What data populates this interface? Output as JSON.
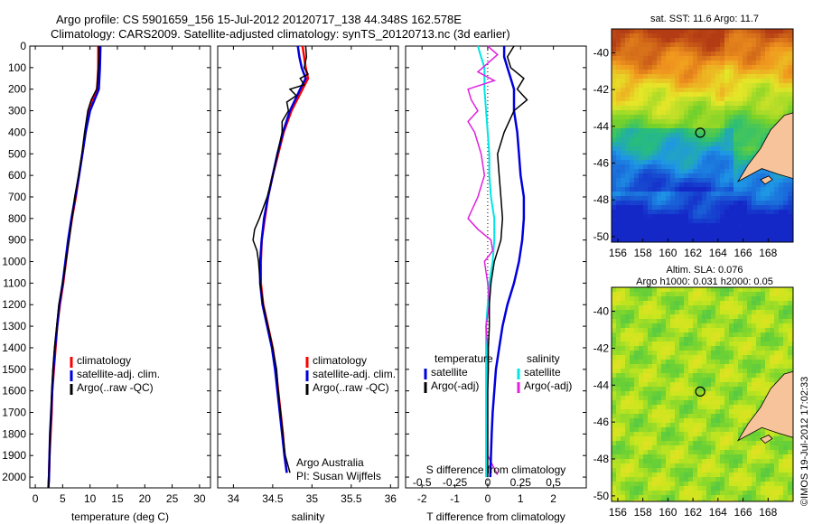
{
  "header": {
    "title_line1": "Argo profile: CS 5901659_156 15-Jul-2012 20120717_138 44.348S 162.578E",
    "title_line2": "Climatology: CARS2009. Satellite-adjusted climatology: synTS_20120713.nc (3d earlier)"
  },
  "colors": {
    "climatology": "#ff0000",
    "satellite": "#0000dd",
    "argo": "#000000",
    "salinity_satellite": "#00e5e5",
    "salinity_argo": "#e020e0",
    "land": "#f7c39a"
  },
  "depth_axis": {
    "min": 0,
    "max": 2050,
    "ticks": [
      0,
      100,
      200,
      300,
      400,
      500,
      600,
      700,
      800,
      900,
      1000,
      1100,
      1200,
      1300,
      1400,
      1500,
      1600,
      1700,
      1800,
      1900,
      2000
    ]
  },
  "panels": {
    "temperature": {
      "xlabel": "temperature (deg C)",
      "xlim": [
        -1,
        32
      ],
      "xticks": [
        0,
        5,
        10,
        15,
        20,
        25,
        30
      ],
      "legend": [
        "climatology",
        "satellite-adj. clim.",
        "Argo(..raw -QC)"
      ]
    },
    "salinity": {
      "xlabel": "salinity",
      "xlim": [
        33.8,
        36.1
      ],
      "xticks": [
        34,
        34.5,
        35,
        35.5,
        36
      ],
      "legend": [
        "climatology",
        "satellite-adj. clim.",
        "Argo(..raw -QC)"
      ],
      "note_line1": "Argo Australia",
      "note_line2": "PI: Susan Wijffels"
    },
    "difference": {
      "xlabel": "T difference from climatology",
      "xlim": [
        -2.5,
        3
      ],
      "xticks": [
        -2,
        -1,
        0,
        1,
        2
      ],
      "s_label": "S difference from climatology",
      "s_ticks": [
        "-0.5",
        "-0.25",
        "0",
        "0.25",
        "0.5"
      ],
      "s_tick_positions": [
        -2,
        -1,
        0,
        1,
        2
      ],
      "legend_temp_title": "temperature",
      "legend_sal_title": "salinity",
      "legend_satellite": "satellite",
      "legend_argo": "Argo(-adj)"
    }
  },
  "maps": {
    "sst": {
      "title": "sat. SST: 11.6 Argo: 11.7",
      "lon_ticks": [
        156,
        158,
        160,
        162,
        164,
        166,
        168
      ],
      "lat_ticks": [
        -40,
        -42,
        -44,
        -46,
        -48,
        -50
      ],
      "lon_range": [
        155.5,
        170
      ],
      "lat_range": [
        -50.3,
        -38.7
      ],
      "float_position": {
        "lon": 162.578,
        "lat": -44.348
      }
    },
    "sla": {
      "title_line1": "Altim. SLA: 0.076",
      "title_line2": "Argo h1000: 0.031 h2000: 0.05",
      "lon_ticks": [
        156,
        158,
        160,
        162,
        164,
        166,
        168
      ],
      "lat_ticks": [
        -40,
        -42,
        -44,
        -46,
        -48,
        -50
      ],
      "lon_range": [
        155.5,
        170
      ],
      "lat_range": [
        -50.3,
        -38.7
      ],
      "float_position": {
        "lon": 162.578,
        "lat": -44.348
      }
    }
  },
  "footer": {
    "stamp": "©IMOS 19-Jul-2012 17:02:33"
  },
  "chart_data": [
    {
      "type": "line",
      "xlabel": "temperature (deg C)",
      "ylabel": "",
      "xlim": [
        -1,
        32
      ],
      "ylim": [
        2050,
        0
      ],
      "series": [
        {
          "name": "climatology",
          "depth": [
            0,
            100,
            200,
            300,
            400,
            500,
            600,
            700,
            800,
            900,
            1000,
            1100,
            1200,
            1300,
            1400,
            1500,
            1600,
            1700,
            1800,
            1900,
            2000,
            2050
          ],
          "values": [
            11.5,
            11.5,
            11.3,
            9.8,
            9.2,
            8.6,
            8.0,
            7.4,
            6.7,
            6.1,
            5.6,
            5.1,
            4.5,
            4.0,
            3.7,
            3.4,
            3.1,
            3.0,
            2.8,
            2.6,
            2.5,
            2.4
          ]
        },
        {
          "name": "satellite-adj. clim.",
          "depth": [
            0,
            100,
            200,
            300,
            400,
            500,
            600,
            700,
            800,
            900,
            1000,
            1100,
            1200,
            1300,
            1400,
            1500,
            1600,
            1700,
            1800,
            1900,
            2000,
            2050
          ],
          "values": [
            11.9,
            11.8,
            11.6,
            10.0,
            9.2,
            8.6,
            8.0,
            7.3,
            6.6,
            6.0,
            5.5,
            5.0,
            4.4,
            4.0,
            3.6,
            3.3,
            3.1,
            2.9,
            2.7,
            2.6,
            2.5,
            2.4
          ]
        },
        {
          "name": "Argo(..raw -QC)",
          "depth": [
            0,
            50,
            100,
            150,
            200,
            250,
            300,
            400,
            500,
            600,
            700,
            800,
            900,
            1000,
            1100,
            1200,
            1300,
            1400,
            1500,
            1600,
            1700,
            1800,
            1900,
            2000,
            2050
          ],
          "values": [
            11.6,
            11.6,
            11.5,
            11.4,
            11.2,
            10.2,
            9.6,
            9.0,
            8.5,
            7.9,
            7.2,
            6.7,
            6.2,
            5.6,
            5.0,
            4.3,
            3.9,
            3.5,
            3.2,
            3.0,
            2.9,
            2.7,
            2.6,
            2.5,
            2.4
          ]
        }
      ]
    },
    {
      "type": "line",
      "xlabel": "salinity",
      "ylabel": "",
      "xlim": [
        33.8,
        36.1
      ],
      "ylim": [
        2050,
        0
      ],
      "series": [
        {
          "name": "climatology",
          "depth": [
            0,
            50,
            100,
            150,
            200,
            300,
            400,
            500,
            600,
            700,
            800,
            900,
            1000,
            1100,
            1200,
            1300,
            1400,
            1500,
            1600,
            1700,
            1800,
            1900,
            1980
          ],
          "values": [
            34.88,
            34.9,
            34.92,
            34.95,
            34.88,
            34.74,
            34.64,
            34.57,
            34.5,
            34.44,
            34.4,
            34.36,
            34.35,
            34.35,
            34.38,
            34.44,
            34.5,
            34.54,
            34.57,
            34.6,
            34.63,
            34.65,
            34.68
          ]
        },
        {
          "name": "satellite-adj. clim.",
          "depth": [
            0,
            50,
            100,
            150,
            200,
            300,
            400,
            500,
            600,
            700,
            800,
            900,
            1000,
            1100,
            1200,
            1300,
            1400,
            1500,
            1600,
            1700,
            1800,
            1900,
            1980
          ],
          "values": [
            34.82,
            34.84,
            34.87,
            34.92,
            34.85,
            34.72,
            34.63,
            34.56,
            34.5,
            34.44,
            34.39,
            34.36,
            34.34,
            34.34,
            34.37,
            34.43,
            34.49,
            34.53,
            34.56,
            34.59,
            34.62,
            34.65,
            34.68
          ]
        },
        {
          "name": "Argo(..raw -QC)",
          "depth": [
            0,
            50,
            100,
            130,
            150,
            180,
            200,
            230,
            260,
            300,
            350,
            400,
            500,
            600,
            700,
            750,
            800,
            850,
            900,
            950,
            1000,
            1100,
            1200,
            1300,
            1400,
            1500,
            1600,
            1700,
            1800,
            1900,
            1980
          ],
          "values": [
            34.92,
            34.93,
            34.9,
            34.95,
            34.85,
            34.9,
            34.72,
            34.8,
            34.68,
            34.7,
            34.62,
            34.62,
            34.56,
            34.5,
            34.43,
            34.38,
            34.33,
            34.27,
            34.25,
            34.3,
            34.32,
            34.34,
            34.38,
            34.44,
            34.5,
            34.55,
            34.57,
            34.6,
            34.63,
            34.66,
            34.72
          ]
        }
      ]
    },
    {
      "type": "line",
      "xlabel": "T difference from climatology",
      "ylabel": "",
      "xlim": [
        -2.5,
        3
      ],
      "ylim": [
        2050,
        0
      ],
      "series": [
        {
          "name": "temperature satellite",
          "depth": [
            0,
            50,
            100,
            150,
            200,
            300,
            400,
            500,
            600,
            700,
            800,
            900,
            1000,
            1100,
            1200,
            1300,
            1400,
            1500,
            1600,
            1700,
            1800,
            1900,
            2000
          ],
          "values": [
            0.5,
            0.5,
            0.6,
            0.7,
            0.8,
            0.8,
            0.9,
            0.95,
            1.0,
            1.1,
            1.1,
            1.05,
            0.95,
            0.8,
            0.6,
            0.45,
            0.35,
            0.25,
            0.2,
            0.15,
            0.12,
            0.1,
            0.08
          ]
        },
        {
          "name": "temperature Argo(-adj)",
          "depth": [
            0,
            50,
            100,
            150,
            200,
            250,
            300,
            400,
            500,
            600,
            700,
            800,
            900,
            1000,
            1100,
            1200,
            1300,
            1400,
            1500,
            1600,
            1700,
            1800,
            1900,
            2000
          ],
          "values": [
            0.8,
            0.6,
            0.7,
            1.1,
            0.9,
            1.2,
            0.8,
            0.5,
            0.3,
            0.35,
            0.4,
            0.45,
            0.4,
            0.2,
            0.1,
            0.05,
            0.05,
            0.02,
            0.02,
            0.0,
            0.0,
            0.0,
            0.0,
            0.0
          ]
        },
        {
          "name": "salinity satellite",
          "depth": [
            0,
            50,
            100,
            200,
            300,
            400,
            500,
            600,
            700,
            800,
            900,
            1000,
            1100,
            1200,
            1300,
            1400,
            1500,
            1600,
            1700,
            1800,
            1900,
            2000
          ],
          "values": [
            -0.3,
            -0.2,
            -0.1,
            -0.1,
            -0.05,
            0.0,
            0.05,
            0.05,
            0.1,
            0.2,
            0.2,
            0.15,
            0.05,
            0.0,
            -0.05,
            -0.05,
            -0.05,
            -0.05,
            -0.05,
            -0.05,
            -0.05,
            -0.05
          ]
        },
        {
          "name": "salinity Argo(-adj)",
          "depth": [
            0,
            40,
            80,
            120,
            160,
            200,
            250,
            300,
            350,
            400,
            500,
            600,
            700,
            800,
            850,
            900,
            950,
            1000,
            1100,
            1200,
            1300,
            1400,
            1500,
            1600,
            1700,
            1800,
            1900,
            1990
          ],
          "values": [
            0.0,
            0.3,
            0.0,
            -0.3,
            0.2,
            -0.6,
            -0.5,
            -0.3,
            -0.6,
            -0.4,
            -0.2,
            -0.1,
            -0.3,
            -0.6,
            -0.3,
            0.1,
            0.15,
            -0.1,
            0.0,
            0.05,
            -0.05,
            0.0,
            0.0,
            0.0,
            0.0,
            0.0,
            0.0,
            0.3
          ]
        }
      ]
    }
  ]
}
